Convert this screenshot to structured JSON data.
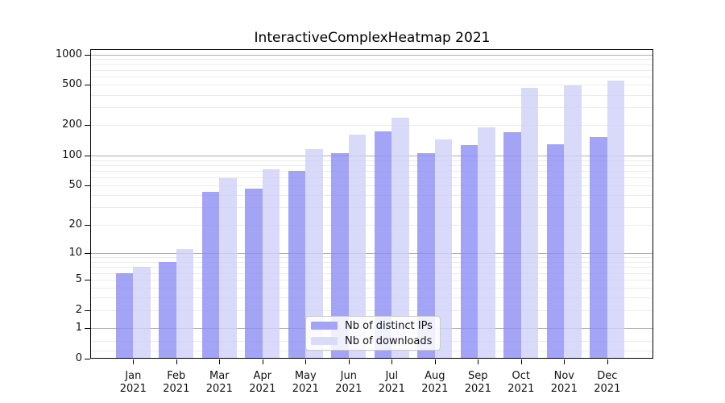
{
  "title": "InteractiveComplexHeatmap 2021",
  "legend": {
    "items": [
      {
        "label": "Nb of distinct IPs",
        "color": "#a4a4f6"
      },
      {
        "label": "Nb of downloads",
        "color": "#dadaf9"
      }
    ]
  },
  "chart_data": {
    "type": "bar",
    "title": "InteractiveComplexHeatmap 2021",
    "categories": [
      "Jan",
      "Feb",
      "Mar",
      "Apr",
      "May",
      "Jun",
      "Jul",
      "Aug",
      "Sep",
      "Oct",
      "Nov",
      "Dec"
    ],
    "year_label": "2021",
    "series": [
      {
        "name": "Nb of distinct IPs",
        "color": "rgba(141,141,244,0.8)",
        "legend_color": "#a4a4f6",
        "values": [
          6,
          8,
          43,
          47,
          70,
          105,
          173,
          106,
          127,
          170,
          130,
          152
        ]
      },
      {
        "name": "Nb of downloads",
        "color": "rgba(208,208,249,0.8)",
        "legend_color": "#dadaf9",
        "values": [
          7,
          11,
          59,
          73,
          115,
          160,
          238,
          145,
          189,
          466,
          497,
          552
        ]
      }
    ],
    "xlabel": "",
    "ylabel": "",
    "y_scale": "log1p",
    "y_ticks": [
      0,
      1,
      2,
      5,
      10,
      20,
      50,
      100,
      200,
      500,
      1000
    ],
    "ylim": [
      0,
      1128
    ],
    "grid": true,
    "grid_major_values": [
      1,
      10,
      100,
      1000
    ],
    "grid_minor_values": [
      0.2,
      0.5,
      2,
      3,
      4,
      5,
      6,
      7,
      8,
      9,
      20,
      30,
      40,
      50,
      60,
      70,
      80,
      90,
      200,
      300,
      400,
      500,
      600,
      700,
      800,
      900
    ],
    "legend_position": "lower center",
    "colors": {
      "bar_distinct_ips": "#a4a4f6",
      "bar_downloads": "#dadaf9",
      "grid_major": "#b0b0b0",
      "grid_minor": "#ebebeb",
      "axis": "#000000",
      "background": "#ffffff"
    }
  }
}
